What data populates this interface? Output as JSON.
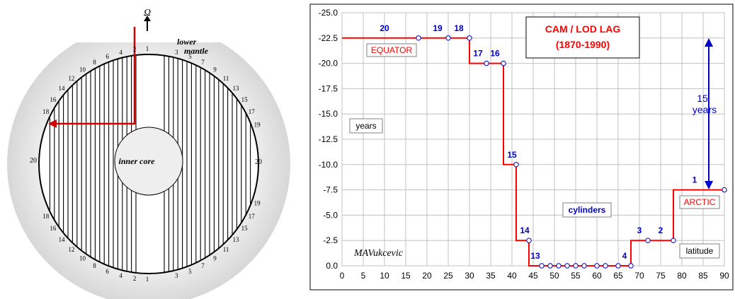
{
  "left_figure": {
    "omega": "Ω",
    "lower_mantle_1": "lower",
    "lower_mantle_2": "mantle",
    "inner_core": "inner core",
    "top_numbers": [
      "1",
      "2",
      "4",
      "6",
      "8",
      "10",
      "12",
      "14",
      "16",
      "18",
      "3",
      "5",
      "7",
      "9",
      "11",
      "13",
      "15",
      "17",
      "19"
    ],
    "side_left": "20",
    "side_right": "20",
    "bottom_numbers": [
      "1",
      "2",
      "4",
      "6",
      "8",
      "10",
      "12",
      "14",
      "16",
      "18",
      "3",
      "5",
      "7",
      "9",
      "11",
      "13",
      "15",
      "17",
      "19"
    ]
  },
  "chart_data": {
    "type": "line",
    "title_line1": "CAM / LOD  LAG",
    "title_line2": "(1870-1990)",
    "x_ticks": [
      0,
      5,
      10,
      15,
      20,
      25,
      30,
      35,
      40,
      45,
      50,
      55,
      60,
      65,
      70,
      75,
      80,
      85,
      90
    ],
    "y_ticks": [
      "-25.0",
      "-22.5",
      "-20.0",
      "-17.5",
      "-15.0",
      "-12.5",
      "-10.0",
      "-7.5",
      "-5.0",
      "-2.5",
      "0.0"
    ],
    "xlim": [
      0,
      90
    ],
    "ylim": [
      0,
      -25
    ],
    "grid": true,
    "series": [
      {
        "points": [
          [
            0,
            -22.5
          ],
          [
            18,
            -22.5
          ],
          [
            25,
            -22.5
          ],
          [
            30,
            -22.5
          ],
          [
            30,
            -20
          ],
          [
            34,
            -20
          ],
          [
            38,
            -20
          ],
          [
            38,
            -10
          ],
          [
            41,
            -10
          ],
          [
            41,
            -2.5
          ],
          [
            44,
            -2.5
          ],
          [
            44,
            0
          ],
          [
            47,
            0
          ],
          [
            49,
            0
          ],
          [
            51,
            0
          ],
          [
            53,
            0
          ],
          [
            55,
            0
          ],
          [
            57,
            0
          ],
          [
            60,
            0
          ],
          [
            62,
            0
          ],
          [
            65,
            0
          ],
          [
            68,
            0
          ],
          [
            68,
            -2.5
          ],
          [
            72,
            -2.5
          ],
          [
            78,
            -2.5
          ],
          [
            78,
            -7.5
          ],
          [
            90,
            -7.5
          ]
        ],
        "markers": [
          [
            18,
            -22.5
          ],
          [
            25,
            -22.5
          ],
          [
            30,
            -22.5
          ],
          [
            34,
            -20
          ],
          [
            38,
            -20
          ],
          [
            41,
            -10
          ],
          [
            44,
            -2.5
          ],
          [
            47,
            0
          ],
          [
            49,
            0
          ],
          [
            51,
            0
          ],
          [
            53,
            0
          ],
          [
            55,
            0
          ],
          [
            57,
            0
          ],
          [
            60,
            0
          ],
          [
            62,
            0
          ],
          [
            65,
            0
          ],
          [
            68,
            0
          ],
          [
            72,
            -2.5
          ],
          [
            78,
            -2.5
          ],
          [
            90,
            -7.5
          ]
        ]
      }
    ],
    "point_labels": [
      {
        "text": "20",
        "x": 10,
        "y": -22.5
      },
      {
        "text": "19",
        "x": 22.5,
        "y": -22.5
      },
      {
        "text": "18",
        "x": 27.5,
        "y": -22.5
      },
      {
        "text": "17",
        "x": 32,
        "y": -20
      },
      {
        "text": "16",
        "x": 36,
        "y": -20
      },
      {
        "text": "15",
        "x": 40,
        "y": -10
      },
      {
        "text": "14",
        "x": 43,
        "y": -2.5
      },
      {
        "text": "13",
        "x": 45.5,
        "y": 0
      },
      {
        "text": "4",
        "x": 66.5,
        "y": 0
      },
      {
        "text": "3",
        "x": 70,
        "y": -2.5
      },
      {
        "text": "2",
        "x": 75,
        "y": -2.5
      },
      {
        "text": "1",
        "x": 83,
        "y": -7.5
      }
    ],
    "annotations": {
      "equator": "EQUATOR",
      "arctic": "ARCTIC",
      "years": "years",
      "cylinders": "cylinders",
      "latitude": "latitude",
      "author": "MAVukcevic",
      "arrow_num": "15",
      "arrow_unit": "years"
    },
    "colors": {
      "line": "#ff0000",
      "markers_fill": "#ffffff",
      "markers_stroke": "#0000cc",
      "labels": "#0000cc",
      "title": "#ff0000",
      "grid": "#c0c0c0"
    }
  }
}
